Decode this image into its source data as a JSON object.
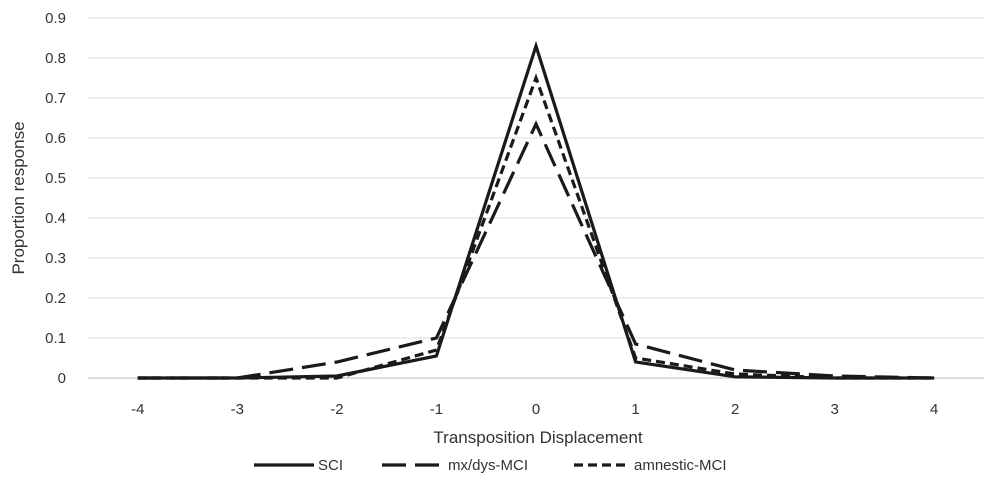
{
  "chart_data": {
    "type": "line",
    "title": "",
    "xlabel": "Transposition Displacement",
    "ylabel": "Proportion response",
    "categories": [
      "-4",
      "-3",
      "-2",
      "-1",
      "0",
      "1",
      "2",
      "3",
      "4"
    ],
    "x": [
      -4,
      -3,
      -2,
      -1,
      0,
      1,
      2,
      3,
      4
    ],
    "ylim": [
      0,
      0.9
    ],
    "yticks": [
      "0",
      "0.1",
      "0.2",
      "0.3",
      "0.4",
      "0.5",
      "0.6",
      "0.7",
      "0.8",
      "0.9"
    ],
    "grid": true,
    "legend_position": "bottom",
    "series": [
      {
        "name": "SCI",
        "style": "solid",
        "color": "#1a1a1a",
        "values": [
          0.0,
          0.0,
          0.005,
          0.055,
          0.83,
          0.04,
          0.003,
          0.0,
          0.0
        ]
      },
      {
        "name": "mx/dys-MCI",
        "style": "long-dash",
        "color": "#1a1a1a",
        "values": [
          0.0,
          0.0,
          0.04,
          0.1,
          0.635,
          0.085,
          0.02,
          0.005,
          0.0
        ]
      },
      {
        "name": "amnestic-MCI",
        "style": "short-dash",
        "color": "#1a1a1a",
        "values": [
          0.0,
          0.0,
          0.0,
          0.07,
          0.75,
          0.05,
          0.01,
          0.0,
          0.0
        ]
      }
    ]
  }
}
